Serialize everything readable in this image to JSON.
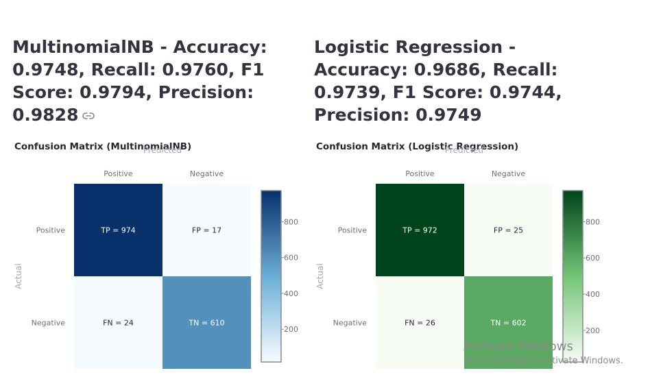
{
  "headings": {
    "nb": "MultinomialNB - Accuracy: 0.9748, Recall: 0.9760, F1 Score: 0.9794, Precision: 0.9828",
    "lr": "Logistic Regression - Accuracy: 0.9686, Recall: 0.9739, F1 Score: 0.9744, Precision: 0.9749"
  },
  "chart_data": [
    {
      "type": "heatmap",
      "title": "Confusion Matrix (MultinomialNB)",
      "xlabel": "Predicted",
      "ylabel": "Actual",
      "x": [
        "Positive",
        "Negative"
      ],
      "y": [
        "Positive",
        "Negative"
      ],
      "z": [
        [
          974,
          17
        ],
        [
          24,
          610
        ]
      ],
      "text": [
        [
          "TP = 974",
          "FP = 17"
        ],
        [
          "FN = 24",
          "TN = 610"
        ]
      ],
      "colorscale": "Blues",
      "colors": {
        "low": "#f7fbff",
        "mid": "#6baed6",
        "high": "#08306b"
      },
      "zrange": [
        17,
        974
      ],
      "colorbar_ticks": [
        200,
        400,
        600,
        800
      ]
    },
    {
      "type": "heatmap",
      "title": "Confusion Matrix (Logistic Regression)",
      "xlabel": "Predicted",
      "ylabel": "Actual",
      "x": [
        "Positive",
        "Negative"
      ],
      "y": [
        "Positive",
        "Negative"
      ],
      "z": [
        [
          972,
          25
        ],
        [
          26,
          602
        ]
      ],
      "text": [
        [
          "TP = 972",
          "FP = 25"
        ],
        [
          "FN = 26",
          "TN = 602"
        ]
      ],
      "colorscale": "Greens",
      "colors": {
        "low": "#f7fcf5",
        "mid": "#74c476",
        "high": "#00441b"
      },
      "zrange": [
        25,
        972
      ],
      "colorbar_ticks": [
        200,
        400,
        600,
        800
      ]
    }
  ],
  "watermark": {
    "title": "Activate Windows",
    "subtitle": "Go to Settings to activate Windows."
  }
}
